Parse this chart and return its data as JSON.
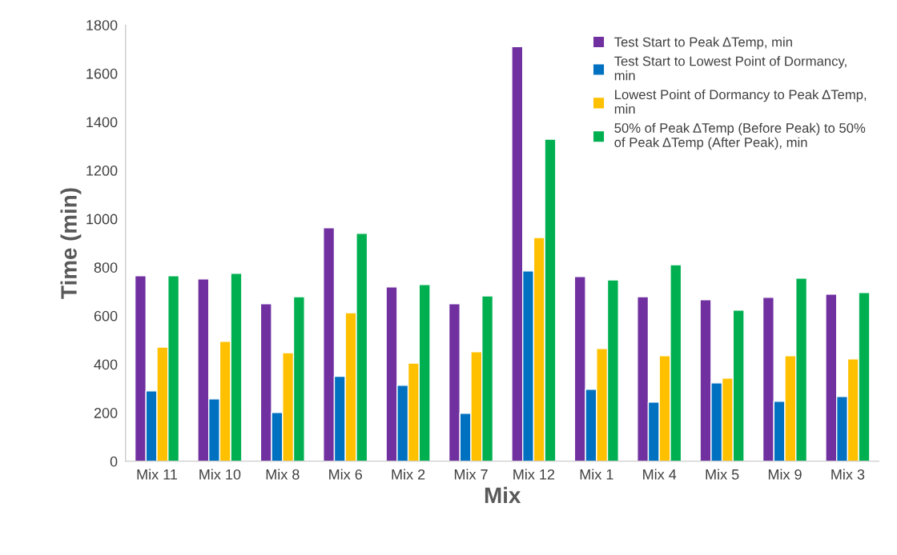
{
  "chart_data": {
    "type": "bar",
    "xlabel": "Mix",
    "ylabel": "Time (min)",
    "categories": [
      "Mix 11",
      "Mix 10",
      "Mix 8",
      "Mix 6",
      "Mix 2",
      "Mix 7",
      "Mix 12",
      "Mix 1",
      "Mix 4",
      "Mix 5",
      "Mix 9",
      "Mix 3"
    ],
    "series": [
      {
        "name": "Test Start to Peak ΔTemp, min",
        "color": "#7030a0",
        "values": [
          765,
          752,
          650,
          963,
          719,
          650,
          1711,
          762,
          679,
          666,
          676,
          689
        ]
      },
      {
        "name": "Test Start to Lowest Point of Dormancy, min",
        "color": "#0070c0",
        "values": [
          290,
          257,
          201,
          350,
          313,
          198,
          785,
          297,
          244,
          323,
          247,
          267
        ]
      },
      {
        "name": "Lowest Point of Dormancy to Peak ΔTemp, min",
        "color": "#ffc000",
        "values": [
          471,
          495,
          448,
          613,
          405,
          452,
          923,
          465,
          435,
          343,
          435,
          422
        ]
      },
      {
        "name": "50% of Peak ΔTemp (Before Peak) to 50% of Peak ΔTemp (After Peak), min",
        "color": "#00b050",
        "values": [
          765,
          775,
          679,
          940,
          729,
          682,
          1329,
          748,
          811,
          623,
          755,
          696
        ]
      }
    ],
    "ylim": [
      0,
      1800
    ],
    "yticks": [
      0,
      200,
      400,
      600,
      800,
      1000,
      1200,
      1400,
      1600,
      1800
    ],
    "grid": false,
    "legend": "top right"
  }
}
